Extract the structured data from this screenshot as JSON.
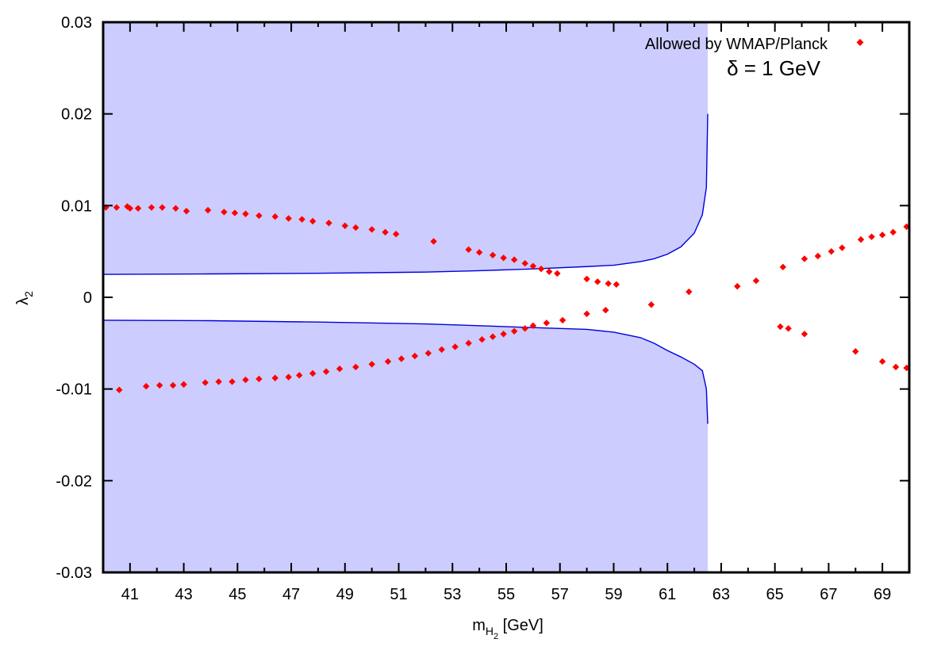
{
  "chart_data": {
    "type": "scatter",
    "title": "",
    "xlabel": {
      "main": "m",
      "sub1": "H",
      "sub2": "2",
      "unit": " [GeV]"
    },
    "ylabel": {
      "main": "λ",
      "sub": "2"
    },
    "xlim": [
      40.0,
      70.0
    ],
    "ylim": [
      -0.03,
      0.03
    ],
    "x_ticks": [
      41,
      43,
      45,
      47,
      49,
      51,
      53,
      55,
      57,
      59,
      61,
      63,
      65,
      67,
      69
    ],
    "x_tick_labels": [
      "41",
      "43",
      "45",
      "47",
      "49",
      "51",
      "53",
      "55",
      "57",
      "59",
      "61",
      "63",
      "65",
      "67",
      "69"
    ],
    "x_minor_ticks": [
      40,
      42,
      44,
      46,
      48,
      50,
      52,
      54,
      56,
      58,
      60,
      62,
      64,
      66,
      68,
      70
    ],
    "y_ticks": [
      -0.03,
      -0.02,
      -0.01,
      0,
      0.01,
      0.02,
      0.03
    ],
    "y_tick_labels": [
      "-0.03",
      "-0.02",
      "-0.01",
      "0",
      "0.01",
      "0.02",
      "0.03"
    ],
    "legend": {
      "position": "top-right",
      "entries": [
        {
          "label": "Allowed by WMAP/Planck",
          "color": "#ff0000",
          "marker": "diamond"
        }
      ]
    },
    "annotation": "δ = 1 GeV",
    "shading": {
      "color": "#ccccff",
      "x_end": 62.5
    },
    "boundary_color": "#0000dd",
    "boundary_upper": [
      [
        40.0,
        0.0025
      ],
      [
        44.0,
        0.00255
      ],
      [
        48.0,
        0.00262
      ],
      [
        52.0,
        0.00275
      ],
      [
        54.0,
        0.0029
      ],
      [
        56.0,
        0.0031
      ],
      [
        58.0,
        0.00335
      ],
      [
        59.0,
        0.0035
      ],
      [
        60.0,
        0.0039
      ],
      [
        60.5,
        0.0042
      ],
      [
        61.0,
        0.0047
      ],
      [
        61.5,
        0.0055
      ],
      [
        62.0,
        0.007
      ],
      [
        62.3,
        0.009
      ],
      [
        62.45,
        0.012
      ],
      [
        62.5,
        0.02
      ]
    ],
    "boundary_lower": [
      [
        40.0,
        -0.0025
      ],
      [
        44.0,
        -0.00255
      ],
      [
        48.0,
        -0.0027
      ],
      [
        52.0,
        -0.0029
      ],
      [
        54.0,
        -0.0031
      ],
      [
        56.0,
        -0.0033
      ],
      [
        57.0,
        -0.0034
      ],
      [
        58.0,
        -0.0035
      ],
      [
        59.0,
        -0.0038
      ],
      [
        60.0,
        -0.0044
      ],
      [
        60.5,
        -0.005
      ],
      [
        61.0,
        -0.0058
      ],
      [
        61.5,
        -0.0065
      ],
      [
        62.0,
        -0.0073
      ],
      [
        62.3,
        -0.008
      ],
      [
        62.45,
        -0.01
      ],
      [
        62.5,
        -0.0138
      ]
    ],
    "series": [
      {
        "name": "Allowed by WMAP/Planck",
        "color": "#ff0000",
        "points": [
          [
            40.1,
            0.0098
          ],
          [
            40.5,
            0.0098
          ],
          [
            40.9,
            0.0099
          ],
          [
            41.0,
            0.0097
          ],
          [
            41.3,
            0.0097
          ],
          [
            41.8,
            0.0098
          ],
          [
            42.2,
            0.0098
          ],
          [
            42.7,
            0.0097
          ],
          [
            43.1,
            0.0094
          ],
          [
            43.9,
            0.0095
          ],
          [
            44.5,
            0.0093
          ],
          [
            44.9,
            0.0092
          ],
          [
            45.3,
            0.0091
          ],
          [
            45.8,
            0.0089
          ],
          [
            46.4,
            0.0088
          ],
          [
            46.9,
            0.0086
          ],
          [
            47.4,
            0.0085
          ],
          [
            47.8,
            0.0083
          ],
          [
            48.4,
            0.0081
          ],
          [
            49.0,
            0.0078
          ],
          [
            49.4,
            0.0076
          ],
          [
            50.0,
            0.0074
          ],
          [
            50.5,
            0.0071
          ],
          [
            50.9,
            0.0069
          ],
          [
            52.3,
            0.0061
          ],
          [
            53.6,
            0.0052
          ],
          [
            54.0,
            0.0049
          ],
          [
            54.5,
            0.0046
          ],
          [
            54.9,
            0.0043
          ],
          [
            55.3,
            0.0041
          ],
          [
            55.7,
            0.0037
          ],
          [
            56.0,
            0.0034
          ],
          [
            56.3,
            0.0031
          ],
          [
            56.6,
            0.0028
          ],
          [
            56.9,
            0.0026
          ],
          [
            58.0,
            0.002
          ],
          [
            58.4,
            0.0017
          ],
          [
            58.8,
            0.0015
          ],
          [
            59.1,
            0.0014
          ],
          [
            61.8,
            0.0006
          ],
          [
            63.6,
            0.0012
          ],
          [
            64.3,
            0.0018
          ],
          [
            65.3,
            0.0033
          ],
          [
            66.1,
            0.0042
          ],
          [
            66.6,
            0.0045
          ],
          [
            67.1,
            0.005
          ],
          [
            67.5,
            0.0054
          ],
          [
            68.2,
            0.0063
          ],
          [
            68.6,
            0.0066
          ],
          [
            69.0,
            0.0068
          ],
          [
            69.4,
            0.0071
          ],
          [
            69.9,
            0.0077
          ],
          [
            40.6,
            -0.0101
          ],
          [
            41.6,
            -0.0097
          ],
          [
            42.1,
            -0.0096
          ],
          [
            42.6,
            -0.0096
          ],
          [
            43.0,
            -0.0095
          ],
          [
            43.8,
            -0.0093
          ],
          [
            44.3,
            -0.0092
          ],
          [
            44.8,
            -0.0092
          ],
          [
            45.3,
            -0.009
          ],
          [
            45.8,
            -0.0089
          ],
          [
            46.4,
            -0.0088
          ],
          [
            46.9,
            -0.0087
          ],
          [
            47.3,
            -0.0085
          ],
          [
            47.8,
            -0.0083
          ],
          [
            48.3,
            -0.0081
          ],
          [
            48.8,
            -0.0078
          ],
          [
            49.4,
            -0.0076
          ],
          [
            50.0,
            -0.0073
          ],
          [
            50.6,
            -0.007
          ],
          [
            51.1,
            -0.0067
          ],
          [
            51.6,
            -0.0064
          ],
          [
            52.1,
            -0.0061
          ],
          [
            52.6,
            -0.0057
          ],
          [
            53.1,
            -0.0054
          ],
          [
            53.6,
            -0.005
          ],
          [
            54.1,
            -0.0046
          ],
          [
            54.5,
            -0.0043
          ],
          [
            54.9,
            -0.004
          ],
          [
            55.3,
            -0.0037
          ],
          [
            55.7,
            -0.0034
          ],
          [
            56.0,
            -0.0031
          ],
          [
            56.5,
            -0.0028
          ],
          [
            57.1,
            -0.0025
          ],
          [
            58.0,
            -0.0018
          ],
          [
            58.7,
            -0.0014
          ],
          [
            60.4,
            -0.0008
          ],
          [
            65.2,
            -0.0032
          ],
          [
            65.5,
            -0.0034
          ],
          [
            66.1,
            -0.004
          ],
          [
            68.0,
            -0.0059
          ],
          [
            69.0,
            -0.007
          ],
          [
            69.5,
            -0.0076
          ],
          [
            69.9,
            -0.0077
          ]
        ]
      }
    ]
  }
}
